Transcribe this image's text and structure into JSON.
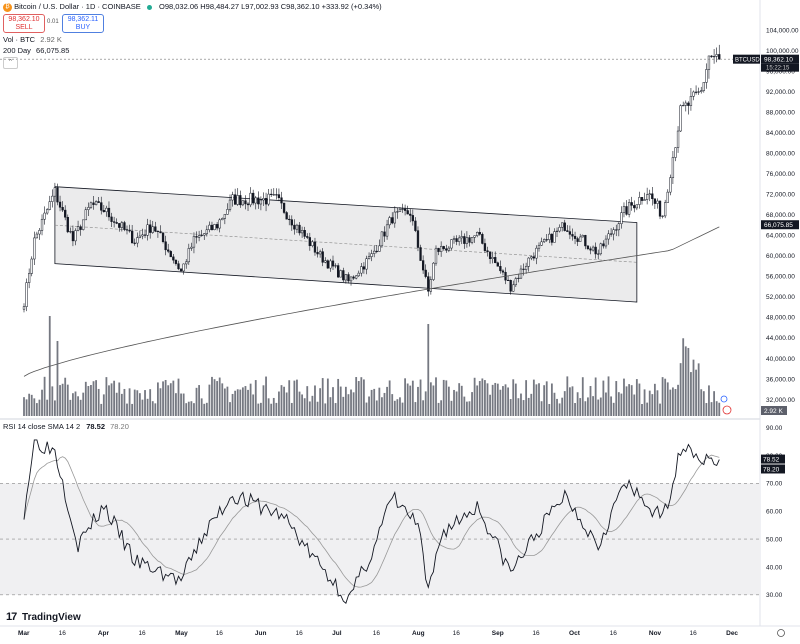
{
  "header": {
    "symbol_title": "Bitcoin / U.S. Dollar · 1D · COINBASE",
    "ohlc": "O98,032.06 H98,484.27 L97,002.93 C98,362.10 +333.92 (+0.34%)",
    "sell_price": "98,362.10",
    "sell_label": "SELL",
    "buy_price": "98,362.11",
    "buy_label": "BUY",
    "spread": "0.01",
    "vol_label": "Vol · BTC",
    "vol_value": "2.92 K",
    "ma_label": "200 Day",
    "ma_value": "66,075.85",
    "collapse_icon": "chevron-up-icon"
  },
  "rsi_header": {
    "label": "RSI 14 close SMA 14 2",
    "value1": "78.52",
    "value2": "78.20"
  },
  "branding": {
    "logo_text": "TradingView"
  },
  "colors": {
    "up": "#131722",
    "down": "#131722",
    "volume": "#5d606b",
    "channel_fill": "#e4e4e6",
    "rsi_band": "#f0f0f2"
  },
  "chart_data": [
    {
      "type": "candlestick",
      "title": "Bitcoin / U.S. Dollar · 1D · COINBASE",
      "x_ticks": [
        "Mar",
        "16",
        "Apr",
        "16",
        "May",
        "16",
        "Jun",
        "16",
        "Jul",
        "16",
        "Aug",
        "16",
        "Sep",
        "16",
        "Oct",
        "16",
        "Nov",
        "16",
        "Dec"
      ],
      "y_ticks": [
        "104,000.00",
        "100,000.00",
        "96,000.00",
        "92,000.00",
        "88,000.00",
        "84,000.00",
        "80,000.00",
        "76,000.00",
        "72,000.00",
        "68,000.00",
        "64,000.00",
        "60,000.00",
        "56,000.00",
        "52,000.00",
        "48,000.00",
        "44,000.00",
        "40,000.00",
        "36,000.00",
        "32,000.00"
      ],
      "ylim": [
        28000,
        106000
      ],
      "last_price_label": "BTCUSD",
      "last_price": "98,362.10",
      "countdown": "15:22:15",
      "ma_price": "66,075.85",
      "volume_label": "2.92 K",
      "grid": false,
      "series_close_keypoints": [
        {
          "date": "Mar 1",
          "close": 51000
        },
        {
          "date": "Mar 5",
          "close": 63000
        },
        {
          "date": "Mar 13",
          "close": 72500
        },
        {
          "date": "Mar 20",
          "close": 63000
        },
        {
          "date": "Mar 27",
          "close": 70000
        },
        {
          "date": "Apr 1",
          "close": 69000
        },
        {
          "date": "Apr 13",
          "close": 63000
        },
        {
          "date": "Apr 20",
          "close": 66000
        },
        {
          "date": "May 1",
          "close": 57000
        },
        {
          "date": "May 6",
          "close": 63000
        },
        {
          "date": "May 15",
          "close": 66000
        },
        {
          "date": "May 21",
          "close": 71000
        },
        {
          "date": "Jun 7",
          "close": 71000
        },
        {
          "date": "Jun 13",
          "close": 67000
        },
        {
          "date": "Jun 24",
          "close": 60000
        },
        {
          "date": "Jul 5",
          "close": 55000
        },
        {
          "date": "Jul 14",
          "close": 60000
        },
        {
          "date": "Jul 22",
          "close": 67500
        },
        {
          "date": "Jul 29",
          "close": 68500
        },
        {
          "date": "Aug 5",
          "close": 53000
        },
        {
          "date": "Aug 8",
          "close": 61000
        },
        {
          "date": "Aug 24",
          "close": 64000
        },
        {
          "date": "Sep 6",
          "close": 54000
        },
        {
          "date": "Sep 14",
          "close": 60000
        },
        {
          "date": "Sep 27",
          "close": 66000
        },
        {
          "date": "Oct 10",
          "close": 60500
        },
        {
          "date": "Oct 20",
          "close": 68500
        },
        {
          "date": "Oct 29",
          "close": 72500
        },
        {
          "date": "Nov 4",
          "close": 68000
        },
        {
          "date": "Nov 11",
          "close": 88000
        },
        {
          "date": "Nov 19",
          "close": 92000
        },
        {
          "date": "Nov 22",
          "close": 99000
        },
        {
          "date": "Nov 26",
          "close": 98362
        }
      ],
      "channel": {
        "upper": [
          {
            "date": "Mar 13",
            "price": 73500
          },
          {
            "date": "Oct 25",
            "price": 66500
          }
        ],
        "lower": [
          {
            "date": "Mar 13",
            "price": 58500
          },
          {
            "date": "Oct 25",
            "price": 51000
          }
        ]
      }
    },
    {
      "type": "line",
      "title": "RSI 14 close SMA 14 2",
      "y_ticks": [
        "90.00",
        "80.00",
        "70.00",
        "60.00",
        "50.00",
        "40.00",
        "30.00"
      ],
      "ylim": [
        26,
        92
      ],
      "bands": [
        30,
        50,
        70
      ],
      "rsi_value": "78.52",
      "sma_value": "78.20",
      "series_keypoints": [
        {
          "date": "Mar 1",
          "rsi": 60
        },
        {
          "date": "Mar 5",
          "rsi": 85
        },
        {
          "date": "Mar 13",
          "rsi": 82
        },
        {
          "date": "Mar 22",
          "rsi": 48
        },
        {
          "date": "Apr 1",
          "rsi": 62
        },
        {
          "date": "Apr 13",
          "rsi": 42
        },
        {
          "date": "May 1",
          "rsi": 35
        },
        {
          "date": "May 10",
          "rsi": 52
        },
        {
          "date": "May 21",
          "rsi": 66
        },
        {
          "date": "Jun 10",
          "rsi": 58
        },
        {
          "date": "Jun 20",
          "rsi": 45
        },
        {
          "date": "Jul 5",
          "rsi": 28
        },
        {
          "date": "Jul 14",
          "rsi": 45
        },
        {
          "date": "Jul 22",
          "rsi": 65
        },
        {
          "date": "Aug 1",
          "rsi": 55
        },
        {
          "date": "Aug 5",
          "rsi": 30
        },
        {
          "date": "Aug 10",
          "rsi": 52
        },
        {
          "date": "Aug 24",
          "rsi": 62
        },
        {
          "date": "Sep 6",
          "rsi": 38
        },
        {
          "date": "Sep 16",
          "rsi": 52
        },
        {
          "date": "Sep 27",
          "rsi": 66
        },
        {
          "date": "Oct 10",
          "rsi": 48
        },
        {
          "date": "Oct 20",
          "rsi": 70
        },
        {
          "date": "Nov 4",
          "rsi": 57
        },
        {
          "date": "Nov 12",
          "rsi": 85
        },
        {
          "date": "Nov 20",
          "rsi": 78
        },
        {
          "date": "Nov 26",
          "rsi": 78.52
        }
      ]
    }
  ]
}
